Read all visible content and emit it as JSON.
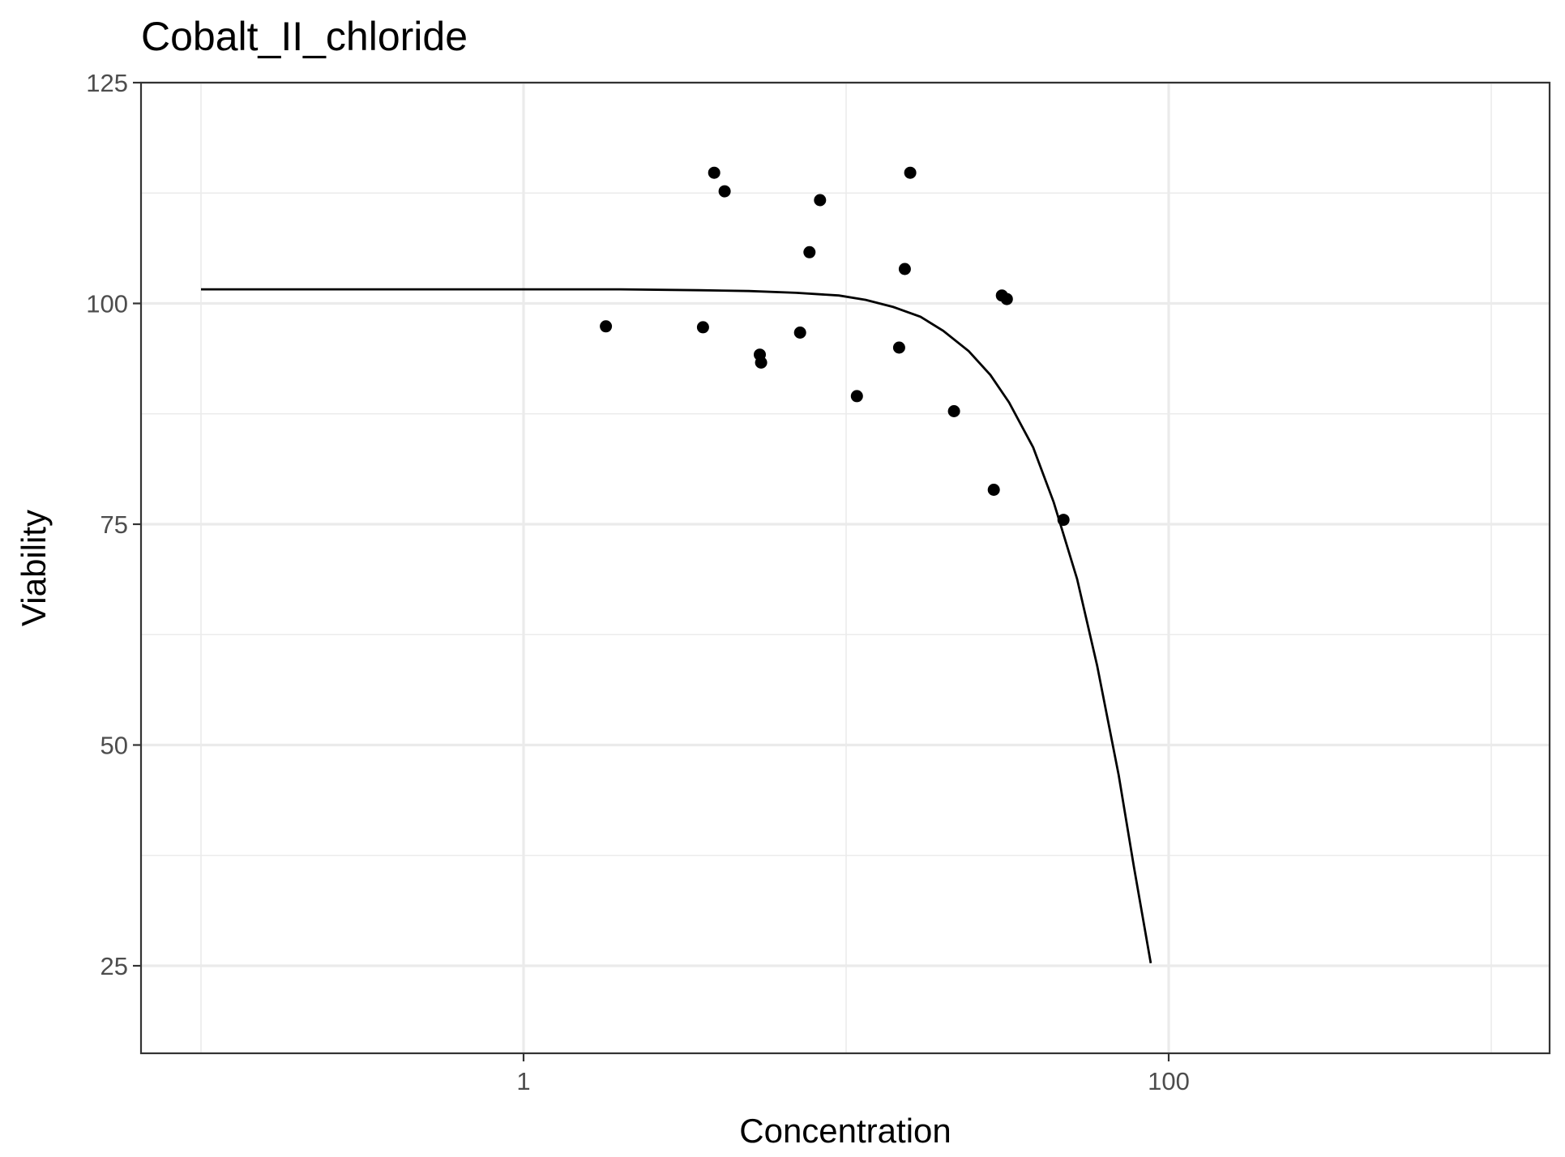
{
  "chart_data": {
    "type": "scatter",
    "title": "Cobalt_II_chloride",
    "xlabel": "Concentration",
    "ylabel": "Viability",
    "x_scale": "log10",
    "xlim": [
      0.1,
      1000
    ],
    "ylim": [
      15,
      125
    ],
    "x_ticks": [
      {
        "value": 1,
        "label": "1"
      },
      {
        "value": 100,
        "label": "100"
      }
    ],
    "y_ticks": [
      {
        "value": 25,
        "label": "25"
      },
      {
        "value": 50,
        "label": "50"
      },
      {
        "value": 75,
        "label": "75"
      },
      {
        "value": 100,
        "label": "100"
      },
      {
        "value": 125,
        "label": "125"
      }
    ],
    "x_minor_gridlines": [
      0.1,
      10,
      1000
    ],
    "y_minor_gridlines": [
      37.5,
      62.5,
      87.5,
      112.5
    ],
    "grid": true,
    "legend": "none",
    "series": [
      {
        "type": "points",
        "x": [
          1.8,
          3.6,
          3.9,
          4.2,
          5.4,
          5.45,
          7.2,
          7.7,
          8.3,
          10.8,
          14.6,
          15.2,
          15.8,
          21.6,
          28.7,
          30.4,
          31.5,
          47.2
        ],
        "y": [
          97.4,
          97.3,
          114.8,
          112.7,
          94.2,
          93.3,
          96.7,
          105.8,
          111.7,
          89.5,
          95.0,
          103.9,
          114.8,
          87.8,
          78.9,
          100.9,
          100.5,
          75.5
        ]
      },
      {
        "type": "fit-curve",
        "x": [
          0.1,
          0.5,
          1,
          2,
          3.5,
          5,
          7,
          9.5,
          11.5,
          14,
          17,
          20,
          24,
          28,
          32,
          38,
          44,
          52,
          60,
          70,
          78,
          88
        ],
        "y": [
          101.6,
          101.6,
          101.6,
          101.6,
          101.5,
          101.4,
          101.2,
          100.9,
          100.4,
          99.6,
          98.5,
          96.9,
          94.6,
          91.9,
          88.8,
          83.7,
          77.5,
          68.8,
          59.0,
          46.6,
          36.2,
          25.3
        ]
      }
    ]
  }
}
